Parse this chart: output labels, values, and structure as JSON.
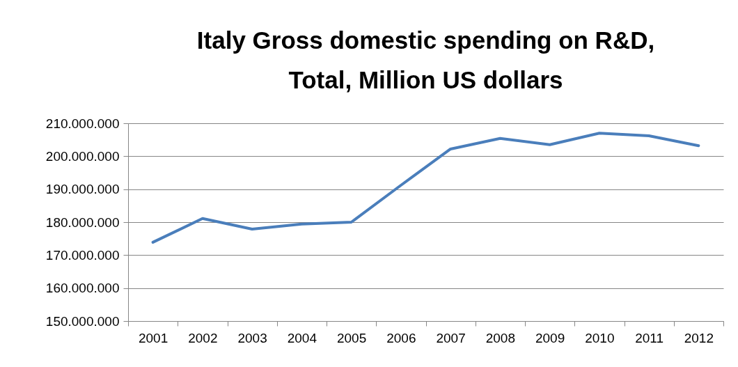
{
  "chart_data": {
    "type": "line",
    "title": "Italy Gross domestic spending on R&D, Total, Million US dollars",
    "categories": [
      "2001",
      "2002",
      "2003",
      "2004",
      "2005",
      "2006",
      "2007",
      "2008",
      "2009",
      "2010",
      "2011",
      "2012"
    ],
    "series": [
      {
        "color": "#4a7ebb",
        "values": [
          173900000,
          181100000,
          177900000,
          179400000,
          180000000,
          191200000,
          202200000,
          205400000,
          203500000,
          207000000,
          206200000,
          203200000
        ]
      }
    ],
    "ylim": [
      150000000,
      210000000
    ],
    "yticks": [
      {
        "value": 150000000,
        "label": "150.000.000"
      },
      {
        "value": 160000000,
        "label": "160.000.000"
      },
      {
        "value": 170000000,
        "label": "170.000.000"
      },
      {
        "value": 180000000,
        "label": "180.000.000"
      },
      {
        "value": 190000000,
        "label": "190.000.000"
      },
      {
        "value": 200000000,
        "label": "200.000.000"
      },
      {
        "value": 210000000,
        "label": "210.000.000"
      }
    ],
    "grid": "y",
    "marker": "none",
    "line_style": "solid"
  }
}
